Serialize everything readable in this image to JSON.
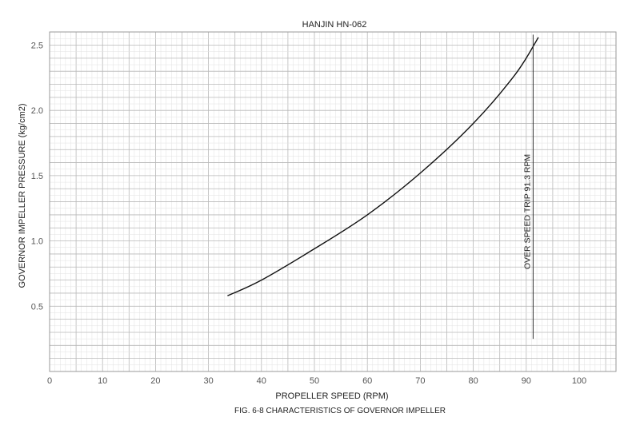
{
  "chart_data": {
    "type": "line",
    "title": "HANJIN HN-062",
    "xlabel": "PROPELLER SPEED (RPM)",
    "ylabel": "GOVERNOR IMPELLER PRESSURE (kg/cm2)",
    "caption": "FIG. 6-8 CHARACTERISTICS OF GOVERNOR IMPELLER",
    "xlim": [
      0,
      106
    ],
    "ylim": [
      0,
      2.6
    ],
    "x_ticks": [
      "0",
      "10",
      "20",
      "30",
      "40",
      "50",
      "60",
      "70",
      "80",
      "90",
      "100"
    ],
    "y_ticks": [
      "0.5",
      "1.0",
      "1.5",
      "2.0",
      "2.5"
    ],
    "grid": true,
    "series": [
      {
        "x": [
          33.6,
          40,
          50,
          60,
          70,
          80,
          88,
          92.3
        ],
        "y": [
          0.58,
          0.7,
          0.94,
          1.2,
          1.52,
          1.9,
          2.28,
          2.56
        ]
      }
    ],
    "annotations": [
      {
        "text": "OVER SPEED TRIP 91.3 RPM",
        "x": 91.3,
        "y_from": 0.25,
        "y_to": 2.58
      }
    ],
    "colors": {
      "grid_major": "#b8b8b8",
      "grid_minor": "#e2e2e2",
      "line": "#111111",
      "text": "#222222"
    }
  }
}
